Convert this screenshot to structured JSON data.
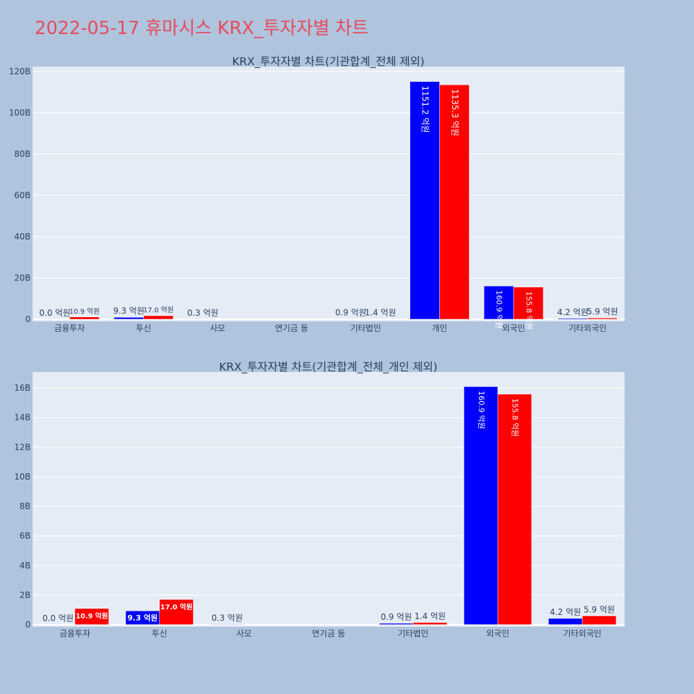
{
  "page": {
    "title": "2022-05-17 휴마시스 KRX_투자자별 차트"
  },
  "colors": {
    "background": "#b0c4de",
    "plot_bg": "#e5ecf6",
    "title": "#e64b5b",
    "buy": "#0000ff",
    "sell": "#ff0000",
    "text": "#2a3f5f"
  },
  "chart_data": [
    {
      "type": "bar",
      "title": "KRX_투자자별 차트(기관합계_전체 제외)",
      "categories": [
        "금융투자",
        "투신",
        "사모",
        "연기금 등",
        "기타법인",
        "개인",
        "외국인",
        "기타외국인"
      ],
      "ylim": [
        0,
        120000000000
      ],
      "y_ticks": [
        0,
        20000000000,
        40000000000,
        60000000000,
        80000000000,
        100000000000,
        120000000000
      ],
      "y_tick_labels": [
        "0",
        "20B",
        "40B",
        "60B",
        "80B",
        "100B",
        "120B"
      ],
      "grid": true,
      "series": [
        {
          "color": "#0000ff",
          "values": [
            0,
            930000000,
            30000000,
            0,
            90000000,
            115120000000,
            16090000000,
            420000000
          ],
          "labels": [
            "0.0 억원",
            "9.3 억원",
            "0.3 억원",
            "",
            "0.9 억원",
            "1151.2 억원",
            "160.9 억원",
            "4.2 억원"
          ]
        },
        {
          "color": "#ff0000",
          "values": [
            1090000000,
            1700000000,
            0,
            0,
            140000000,
            113530000000,
            15580000000,
            590000000
          ],
          "labels": [
            "10.9 억원",
            "17.0 억원",
            "",
            "",
            "1.4 억원",
            "1135.3 억원",
            "155.8 억원",
            "5.9 억원"
          ]
        }
      ]
    },
    {
      "type": "bar",
      "title": "KRX_투자자별 차트(기관합계_전체_개인 제외)",
      "categories": [
        "금융투자",
        "투신",
        "사모",
        "연기금 등",
        "기타법인",
        "외국인",
        "기타외국인"
      ],
      "ylim": [
        0,
        17000000000
      ],
      "y_ticks": [
        0,
        2000000000,
        4000000000,
        6000000000,
        8000000000,
        10000000000,
        12000000000,
        14000000000,
        16000000000
      ],
      "y_tick_labels": [
        "0",
        "2B",
        "4B",
        "6B",
        "8B",
        "10B",
        "12B",
        "14B",
        "16B"
      ],
      "grid": true,
      "series": [
        {
          "color": "#0000ff",
          "values": [
            0,
            930000000,
            30000000,
            0,
            90000000,
            16090000000,
            420000000
          ],
          "labels": [
            "0.0 억원",
            "9.3 억원",
            "0.3 억원",
            "",
            "0.9 억원",
            "160.9 억원",
            "4.2 억원"
          ]
        },
        {
          "color": "#ff0000",
          "values": [
            1090000000,
            1700000000,
            0,
            0,
            140000000,
            15580000000,
            590000000
          ],
          "labels": [
            "10.9 억원",
            "17.0 억원",
            "",
            "",
            "1.4 억원",
            "155.8 억원",
            "5.9 억원"
          ]
        }
      ]
    }
  ]
}
